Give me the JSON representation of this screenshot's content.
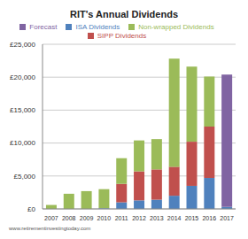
{
  "chart_data": {
    "type": "bar",
    "title": "RIT's Annual Dividends",
    "source": "www.retirementinvestingtoday.com",
    "categories": [
      "2007",
      "2008",
      "2009",
      "2010",
      "2011",
      "2012",
      "2013",
      "2014",
      "2015",
      "2016",
      "2017"
    ],
    "series": [
      {
        "name": "ISA Dividends",
        "color": "#4f81bd",
        "values": [
          0,
          0,
          0,
          100,
          1000,
          1300,
          1400,
          2000,
          3500,
          4700,
          300
        ]
      },
      {
        "name": "SIPP Dividends",
        "color": "#c0504d",
        "values": [
          0,
          0,
          0,
          0,
          2800,
          4400,
          4600,
          4400,
          6700,
          7800,
          0
        ]
      },
      {
        "name": "Non-wrapped Dividends",
        "color": "#9bbb59",
        "values": [
          600,
          2300,
          2700,
          2900,
          3900,
          4700,
          4600,
          16400,
          11400,
          7600,
          0
        ]
      },
      {
        "name": "Forecast",
        "color": "#8064a2",
        "values": [
          0,
          0,
          0,
          0,
          0,
          0,
          0,
          0,
          0,
          0,
          20100
        ]
      }
    ],
    "stacked": true,
    "ylim": [
      0,
      25000
    ],
    "yticks": [
      {
        "value": 0,
        "label": "£0"
      },
      {
        "value": 5000,
        "label": "£5,000"
      },
      {
        "value": 10000,
        "label": "£10,000"
      },
      {
        "value": 15000,
        "label": "£15,000"
      },
      {
        "value": 20000,
        "label": "£20,000"
      },
      {
        "value": 25000,
        "label": "£25,000"
      }
    ],
    "grid": true,
    "legend": "top"
  }
}
